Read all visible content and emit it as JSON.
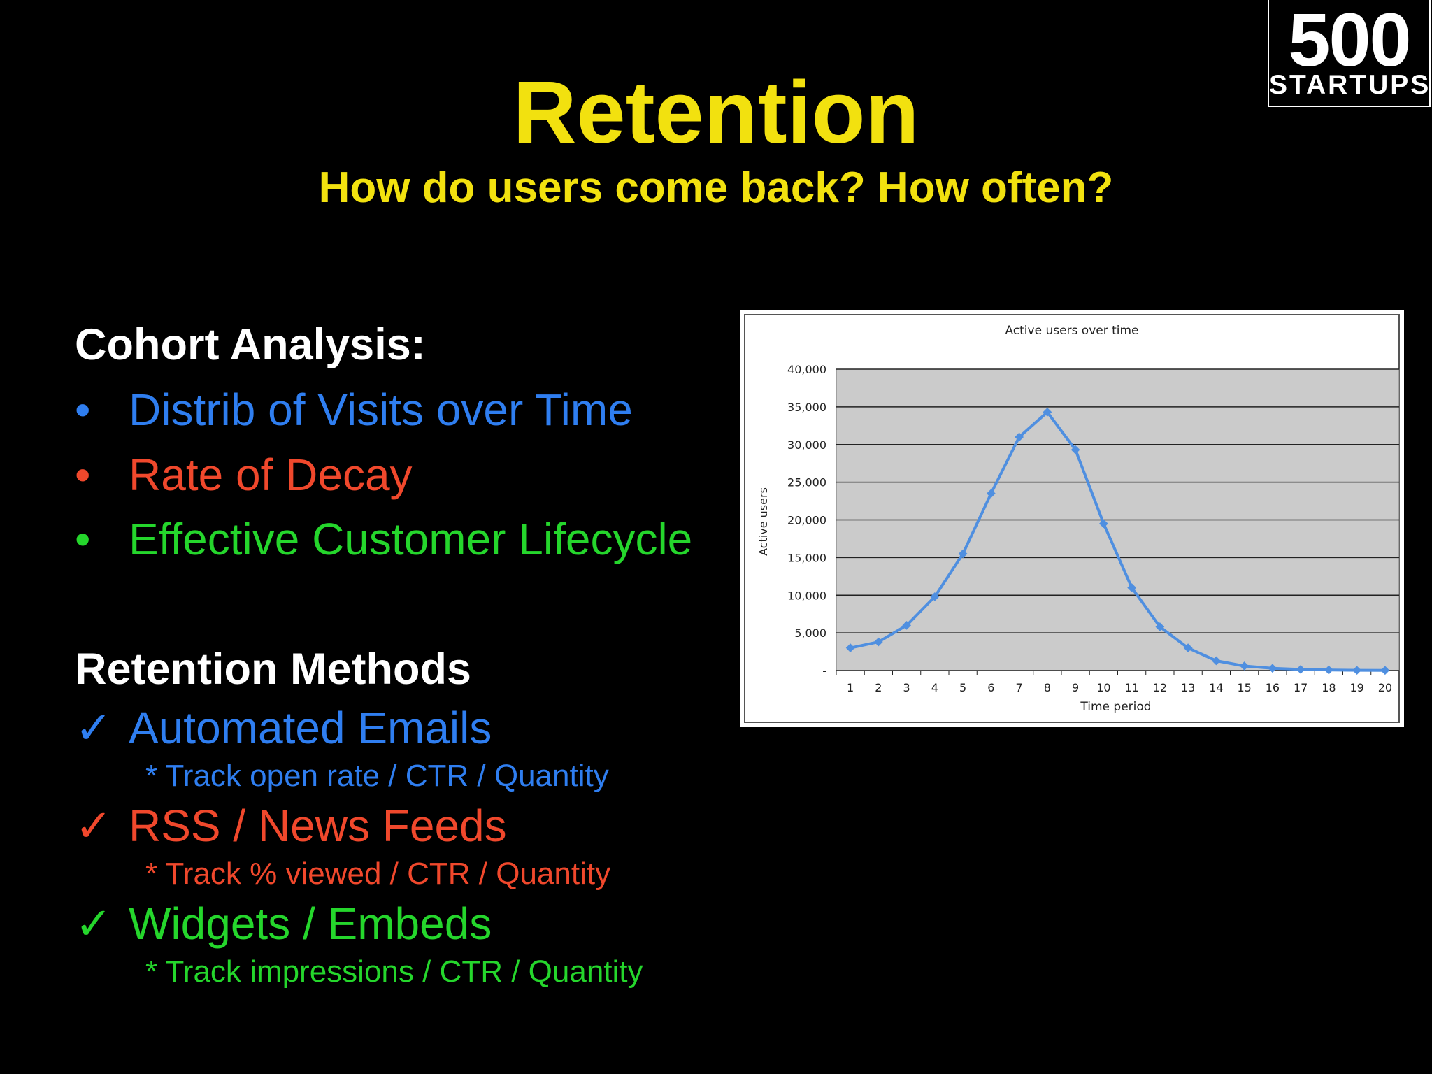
{
  "logo": {
    "number": "500",
    "word": "STARTUPS"
  },
  "slide": {
    "title": "Retention",
    "subtitle": "How do users come back? How often?"
  },
  "cohort": {
    "heading": "Cohort Analysis:",
    "items": [
      {
        "mark": "•",
        "label": "Distrib of Visits over Time",
        "color": "#2f7ef0"
      },
      {
        "mark": "•",
        "label": "Rate of Decay",
        "color": "#f0482c"
      },
      {
        "mark": "•",
        "label": "Effective Customer Lifecycle",
        "color": "#25d62c"
      }
    ]
  },
  "retention": {
    "heading": "Retention Methods",
    "items": [
      {
        "mark": "✓",
        "label": "Automated Emails",
        "detail": "* Track open rate / CTR / Quantity",
        "color": "#2f7ef0"
      },
      {
        "mark": "✓",
        "label": "RSS / News Feeds",
        "detail": "* Track % viewed / CTR / Quantity",
        "color": "#f0482c"
      },
      {
        "mark": "✓",
        "label": "Widgets / Embeds",
        "detail": "* Track impressions / CTR / Quantity",
        "color": "#25d62c"
      }
    ]
  },
  "chart_data": {
    "type": "line",
    "title": "Active users over time",
    "xlabel": "Time period",
    "ylabel": "Active users",
    "x": [
      1,
      2,
      3,
      4,
      5,
      6,
      7,
      8,
      9,
      10,
      11,
      12,
      13,
      14,
      15,
      16,
      17,
      18,
      19,
      20
    ],
    "series": [
      {
        "values": [
          3000,
          3800,
          6000,
          9800,
          15500,
          23500,
          31000,
          34300,
          29300,
          19500,
          11000,
          5800,
          3000,
          1300,
          600,
          300,
          150,
          80,
          30,
          20
        ],
        "color": "#4f8fe0"
      }
    ],
    "ylim": [
      0,
      40000
    ],
    "yticks": [
      0,
      5000,
      10000,
      15000,
      20000,
      25000,
      30000,
      35000,
      40000
    ],
    "ytick_labels": [
      "-",
      "5,000",
      "10,000",
      "15,000",
      "20,000",
      "25,000",
      "30,000",
      "35,000",
      "40,000"
    ],
    "grid": true,
    "plot_background": "#cbcbcb"
  }
}
